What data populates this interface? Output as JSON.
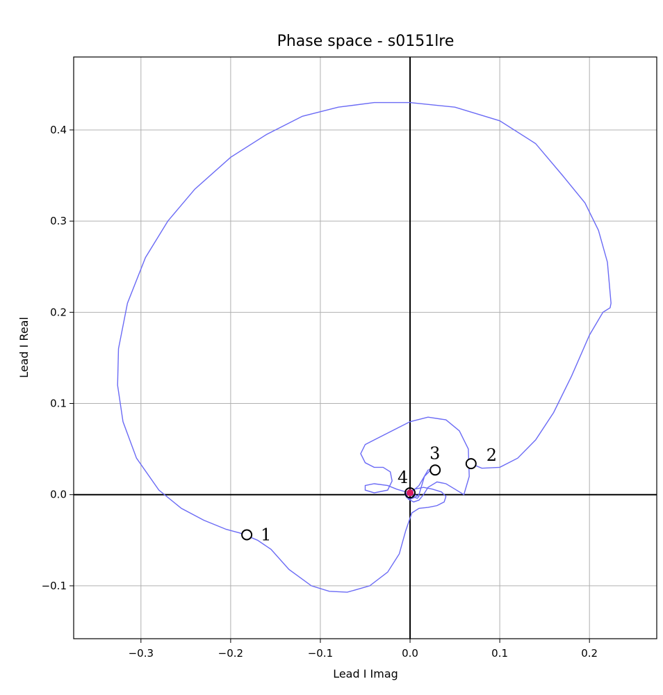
{
  "chart_data": {
    "type": "line",
    "title": "Phase space - s0151lre",
    "xlabel": "Lead I Imag",
    "ylabel": "Lead I Real",
    "xlim": [
      -0.375,
      0.275
    ],
    "ylim": [
      -0.158,
      0.48
    ],
    "xticks": [
      -0.3,
      -0.2,
      -0.1,
      0.0,
      0.1,
      0.2
    ],
    "xtick_labels": [
      "−0.3",
      "−0.2",
      "−0.1",
      "0.0",
      "0.1",
      "0.2"
    ],
    "yticks": [
      -0.1,
      0.0,
      0.1,
      0.2,
      0.3,
      0.4
    ],
    "ytick_labels": [
      "−0.1",
      "0.0",
      "0.1",
      "0.2",
      "0.3",
      "0.4"
    ],
    "grid": true,
    "zero_lines": true,
    "trace_color": "#6a6af5",
    "series": [
      {
        "color": "#6a6af5",
        "x": [
          0.068,
          0.08,
          0.1,
          0.12,
          0.14,
          0.16,
          0.18,
          0.2,
          0.215,
          0.223,
          0.224,
          0.22,
          0.21,
          0.195,
          0.17,
          0.14,
          0.1,
          0.05,
          0.0,
          -0.04,
          -0.08,
          -0.12,
          -0.16,
          -0.2,
          -0.24,
          -0.27,
          -0.295,
          -0.315,
          -0.325,
          -0.326,
          -0.32,
          -0.305,
          -0.28,
          -0.255,
          -0.23,
          -0.205,
          -0.19,
          -0.182,
          -0.17,
          -0.155,
          -0.135,
          -0.11,
          -0.09,
          -0.07,
          -0.045,
          -0.025,
          -0.012,
          -0.005,
          0.002,
          0.01,
          0.02,
          0.03,
          0.038,
          0.04,
          0.035,
          0.025,
          0.015,
          0.005,
          0.0,
          -0.004,
          -0.002,
          0.004,
          0.01,
          0.015,
          0.02,
          0.03,
          0.04,
          0.05,
          0.06,
          0.066,
          0.065,
          0.055,
          0.04,
          0.02,
          0.0,
          -0.02,
          -0.04,
          -0.05,
          -0.055,
          -0.05,
          -0.04,
          -0.03,
          -0.022,
          -0.02,
          -0.025,
          -0.04,
          -0.05,
          -0.05,
          -0.04,
          -0.025,
          -0.015,
          -0.008,
          0.0,
          0.005,
          0.01,
          0.008,
          0.003,
          -0.002,
          -0.006,
          -0.004,
          0.0,
          0.005,
          0.01,
          0.016,
          0.022,
          0.024,
          0.02,
          0.01,
          0.003,
          0.0
        ],
        "y": [
          0.034,
          0.029,
          0.03,
          0.04,
          0.06,
          0.09,
          0.13,
          0.175,
          0.2,
          0.205,
          0.21,
          0.255,
          0.29,
          0.32,
          0.35,
          0.385,
          0.41,
          0.425,
          0.43,
          0.43,
          0.425,
          0.415,
          0.395,
          0.37,
          0.335,
          0.3,
          0.26,
          0.21,
          0.16,
          0.12,
          0.08,
          0.04,
          0.005,
          -0.015,
          -0.028,
          -0.038,
          -0.042,
          -0.045,
          -0.05,
          -0.06,
          -0.082,
          -0.1,
          -0.106,
          -0.107,
          -0.1,
          -0.085,
          -0.065,
          -0.04,
          -0.02,
          -0.015,
          -0.014,
          -0.012,
          -0.008,
          -0.002,
          0.003,
          0.006,
          0.008,
          0.006,
          0.003,
          0.0,
          -0.005,
          -0.008,
          -0.006,
          0.0,
          0.008,
          0.014,
          0.012,
          0.006,
          0.0,
          0.02,
          0.05,
          0.07,
          0.082,
          0.085,
          0.08,
          0.07,
          0.06,
          0.055,
          0.045,
          0.035,
          0.03,
          0.03,
          0.025,
          0.015,
          0.005,
          0.002,
          0.005,
          0.01,
          0.012,
          0.01,
          0.006,
          0.004,
          0.002,
          0.0,
          -0.002,
          -0.004,
          -0.002,
          0.002,
          0.001,
          -0.003,
          -0.005,
          -0.003,
          0.0,
          0.02,
          0.026,
          0.028,
          0.027,
          0.01,
          0.004,
          0.002
        ]
      }
    ],
    "markers": [
      {
        "label": "1",
        "x": -0.182,
        "y": -0.044
      },
      {
        "label": "2",
        "x": 0.068,
        "y": 0.034
      },
      {
        "label": "3",
        "x": 0.028,
        "y": 0.027
      },
      {
        "label": "4",
        "x": 0.0,
        "y": 0.002
      }
    ],
    "origin_marker_color": "#d81b60"
  }
}
